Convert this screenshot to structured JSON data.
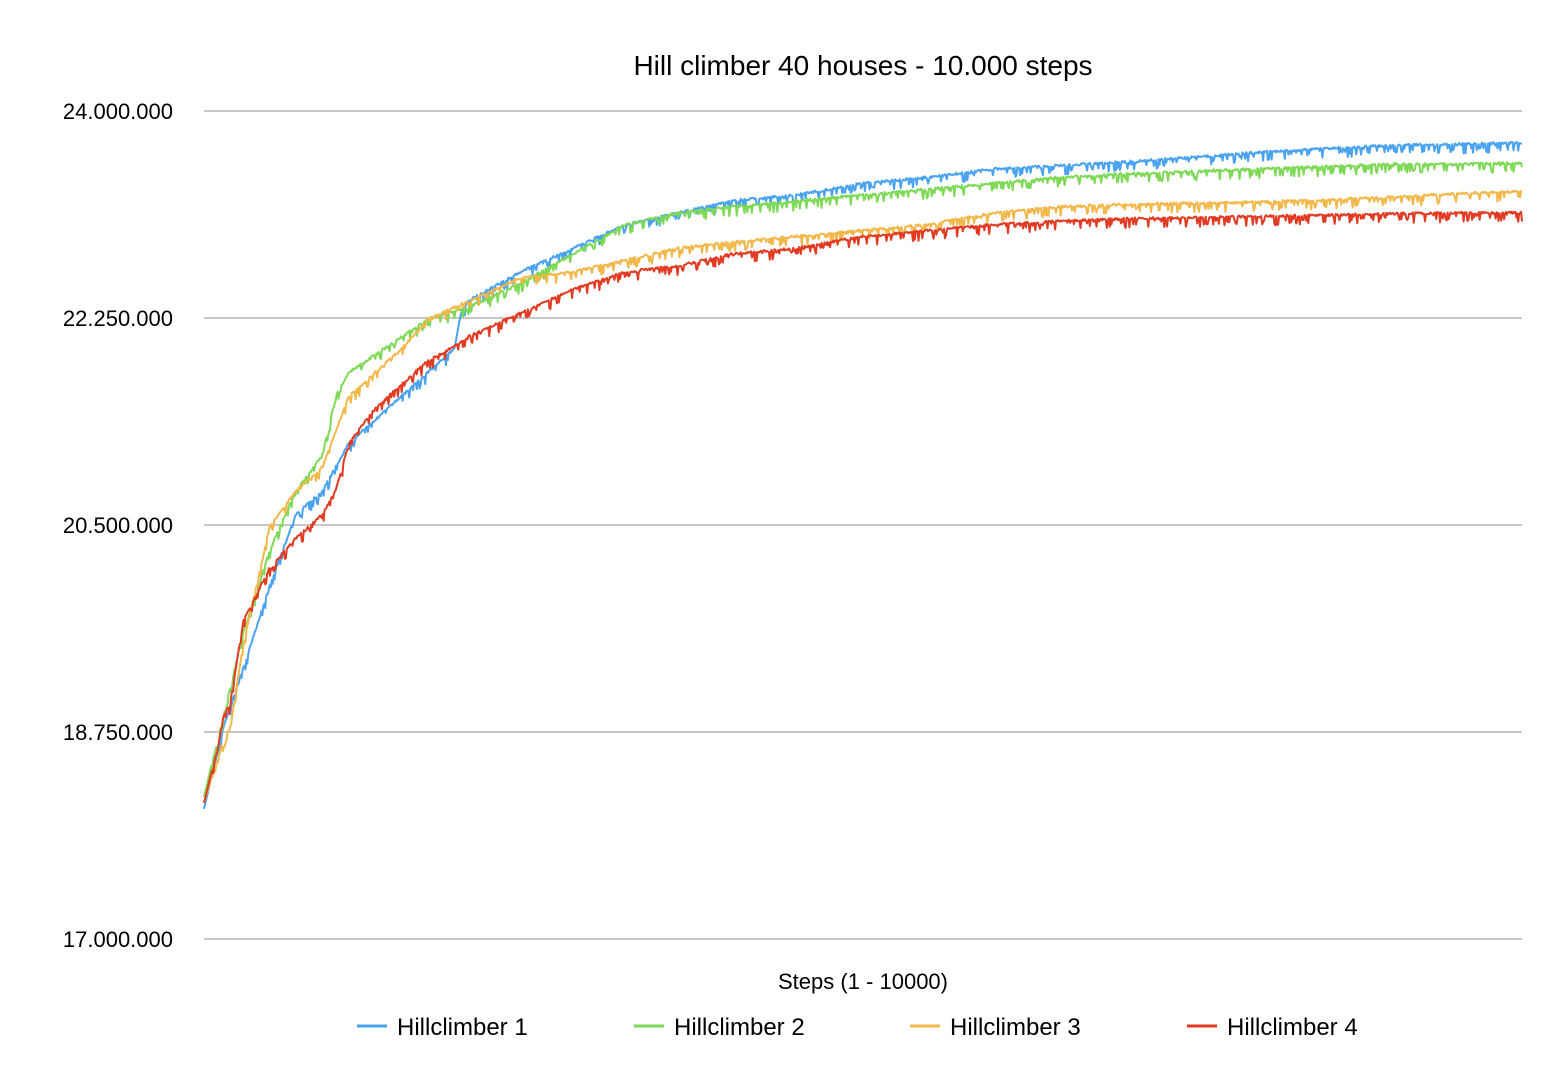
{
  "chart_data": {
    "type": "line",
    "title": "Hill climber 40 houses - 10.000 steps",
    "xlabel": "Steps (1 - 10000)",
    "ylabel": "",
    "xlim": [
      1,
      10000
    ],
    "ylim": [
      17000000,
      24000000
    ],
    "yticks": [
      17000000,
      18750000,
      20500000,
      22250000,
      24000000
    ],
    "ytick_labels": [
      "17.000.000",
      "18.750.000",
      "20.500.000",
      "22.250.000",
      "24.000.000"
    ],
    "grid": true,
    "legend_position": "bottom",
    "series": [
      {
        "name": "Hillclimber 1",
        "color": "#4aa3f0",
        "x": [
          1,
          150,
          300,
          500,
          700,
          900,
          1000,
          1100,
          1300,
          1500,
          1700,
          1900,
          1950,
          2000,
          2400,
          2800,
          3200,
          3600,
          4000,
          4500,
          5000,
          5500,
          6000,
          6500,
          7000,
          7500,
          8000,
          8500,
          9000,
          9500,
          10000
        ],
        "y": [
          18100000,
          18800000,
          19300000,
          20000000,
          20600000,
          20800000,
          21000000,
          21200000,
          21400000,
          21600000,
          21800000,
          22000000,
          22300000,
          22400000,
          22650000,
          22850000,
          23050000,
          23150000,
          23250000,
          23300000,
          23400000,
          23450000,
          23520000,
          23550000,
          23580000,
          23620000,
          23660000,
          23690000,
          23720000,
          23730000,
          23740000
        ]
      },
      {
        "name": "Hillclimber 2",
        "color": "#7ed957",
        "x": [
          1,
          150,
          300,
          500,
          700,
          900,
          1000,
          1100,
          1300,
          1500,
          1700,
          2000,
          2400,
          2800,
          3200,
          3600,
          4000,
          4500,
          5000,
          5500,
          6000,
          6500,
          7000,
          7500,
          8000,
          8500,
          9000,
          9500,
          10000
        ],
        "y": [
          18200000,
          18900000,
          19600000,
          20300000,
          20800000,
          21100000,
          21600000,
          21800000,
          21950000,
          22100000,
          22250000,
          22350000,
          22550000,
          22800000,
          23050000,
          23150000,
          23200000,
          23250000,
          23300000,
          23350000,
          23400000,
          23450000,
          23480000,
          23500000,
          23520000,
          23540000,
          23560000,
          23560000,
          23570000
        ]
      },
      {
        "name": "Hillclimber 3",
        "color": "#f2b84b",
        "x": [
          1,
          150,
          200,
          300,
          500,
          700,
          900,
          1000,
          1100,
          1300,
          1500,
          1700,
          2000,
          2400,
          2800,
          3200,
          3600,
          4000,
          4500,
          5000,
          5500,
          6000,
          6500,
          7000,
          7500,
          8000,
          8500,
          9000,
          9500,
          10000
        ],
        "y": [
          18150000,
          18700000,
          18800000,
          19500000,
          20500000,
          20800000,
          21000000,
          21300000,
          21600000,
          21800000,
          22000000,
          22250000,
          22400000,
          22600000,
          22650000,
          22750000,
          22850000,
          22900000,
          22950000,
          23000000,
          23050000,
          23150000,
          23200000,
          23220000,
          23230000,
          23240000,
          23260000,
          23280000,
          23310000,
          23330000
        ]
      },
      {
        "name": "Hillclimber 4",
        "color": "#e23b23",
        "x": [
          1,
          100,
          150,
          200,
          300,
          500,
          700,
          900,
          1000,
          1100,
          1300,
          1500,
          1700,
          1950,
          2000,
          2400,
          2800,
          3200,
          3600,
          4000,
          4500,
          5000,
          5500,
          6000,
          6500,
          7000,
          7500,
          8000,
          8500,
          9000,
          9500,
          10000
        ],
        "y": [
          18150000,
          18600000,
          18900000,
          19000000,
          19700000,
          20150000,
          20400000,
          20600000,
          20800000,
          21200000,
          21500000,
          21700000,
          21900000,
          22050000,
          22100000,
          22300000,
          22500000,
          22650000,
          22700000,
          22800000,
          22850000,
          22950000,
          23000000,
          23050000,
          23080000,
          23100000,
          23110000,
          23120000,
          23130000,
          23140000,
          23150000,
          23150000
        ]
      }
    ]
  }
}
